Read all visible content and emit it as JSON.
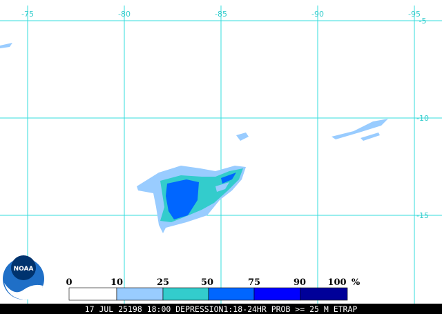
{
  "map": {
    "longitudes": [
      -75,
      -80,
      -85,
      -90,
      -95
    ],
    "latitudes": [
      -5,
      -10,
      -15
    ],
    "logo": "NOAA",
    "legend": {
      "labels": [
        0,
        10,
        25,
        50,
        75,
        90,
        100
      ],
      "unit": "%",
      "colors": [
        "#ffffff",
        "#99ccff",
        "#33cccc",
        "#0066ff",
        "#0000ff",
        "#000099"
      ]
    },
    "caption": "17 JUL 25198 18:00 DEPRESSION1:18-24HR PROB >= 25 M ETRAP"
  }
}
